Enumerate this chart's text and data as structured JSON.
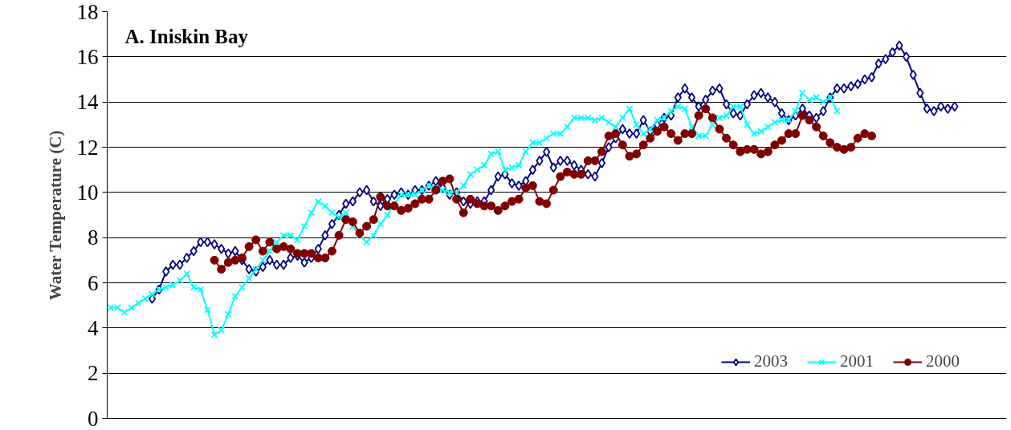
{
  "chart_data": {
    "type": "line",
    "title": "A. Iniskin Bay",
    "ylabel": "Water Temperature (C)",
    "categories": [
      null,
      null,
      null,
      null,
      null,
      null,
      null,
      null,
      null,
      null,
      null,
      null,
      null,
      null,
      null,
      null,
      null,
      null,
      null,
      null,
      null,
      null,
      null,
      null,
      null,
      null,
      null,
      null,
      null,
      null,
      null,
      null,
      null,
      null,
      null,
      null,
      null,
      null,
      null,
      null,
      null,
      null,
      null,
      null,
      null,
      null,
      null,
      null,
      null,
      null,
      null,
      null,
      null,
      null,
      null,
      null,
      null,
      null,
      null,
      null,
      null,
      null,
      null,
      null,
      null,
      null,
      null,
      null,
      null,
      null,
      null,
      null,
      null,
      null,
      null,
      null,
      null,
      null,
      null,
      null,
      null,
      null,
      null,
      null,
      null,
      null,
      null,
      null,
      null,
      null,
      null,
      null,
      null,
      null,
      null,
      null,
      null,
      null,
      null,
      null,
      null,
      null,
      null,
      null,
      null,
      null,
      null,
      null,
      null,
      null,
      null,
      null,
      null,
      null,
      null,
      null,
      null,
      null,
      null,
      null,
      null,
      null,
      null,
      null,
      null,
      null,
      null,
      null,
      null,
      null
    ],
    "series": [
      {
        "name": "2003",
        "color": "#000080",
        "marker": "diamond",
        "values": [
          null,
          null,
          null,
          null,
          null,
          null,
          5.3,
          5.7,
          6.5,
          6.8,
          6.8,
          7.1,
          7.4,
          7.8,
          7.8,
          7.7,
          7.5,
          7.3,
          7.4,
          7.0,
          6.6,
          6.5,
          6.7,
          7.0,
          6.8,
          6.8,
          7.1,
          7.2,
          6.9,
          7.1,
          7.5,
          8.1,
          8.6,
          9.0,
          9.5,
          9.6,
          10.0,
          10.1,
          9.6,
          9.4,
          9.7,
          9.9,
          10.0,
          9.9,
          10.1,
          10.1,
          10.3,
          10.5,
          10.2,
          9.9,
          10.0,
          9.6,
          9.5,
          9.6,
          9.6,
          10.1,
          10.7,
          10.8,
          10.4,
          10.3,
          10.5,
          11.0,
          11.4,
          11.8,
          11.1,
          11.4,
          11.4,
          11.2,
          11.0,
          10.8,
          10.7,
          11.3,
          12.0,
          12.4,
          12.8,
          12.6,
          12.6,
          13.2,
          12.7,
          13.0,
          13.3,
          13.4,
          14.2,
          14.6,
          14.2,
          13.8,
          14.1,
          14.5,
          14.6,
          13.9,
          13.5,
          13.4,
          13.9,
          14.3,
          14.4,
          14.2,
          14.0,
          13.5,
          13.2,
          13.4,
          13.7,
          13.4,
          13.3,
          13.6,
          14.2,
          14.6,
          14.6,
          14.7,
          14.8,
          15.0,
          15.1,
          15.7,
          15.9,
          16.2,
          16.5,
          16.0,
          15.2,
          14.4,
          13.7,
          13.6,
          13.8,
          13.7,
          13.8,
          null,
          null,
          null,
          null,
          null,
          null,
          null
        ]
      },
      {
        "name": "2001",
        "color": "#00ffff",
        "marker": "cross",
        "values": [
          4.9,
          4.9,
          4.7,
          4.9,
          5.1,
          5.3,
          5.5,
          5.7,
          5.8,
          5.9,
          6.1,
          6.4,
          5.8,
          5.7,
          4.8,
          3.7,
          3.9,
          4.6,
          5.4,
          5.8,
          6.2,
          6.6,
          7.0,
          7.4,
          7.8,
          8.1,
          8.1,
          7.9,
          8.5,
          9.1,
          9.6,
          9.4,
          9.1,
          8.9,
          9.1,
          8.5,
          8.1,
          7.8,
          8.1,
          8.6,
          9.0,
          9.5,
          9.9,
          9.9,
          9.9,
          10.1,
          10.3,
          10.2,
          10.1,
          10.0,
          10.0,
          10.3,
          10.8,
          11.0,
          11.2,
          11.7,
          11.8,
          11.0,
          11.1,
          11.2,
          11.8,
          12.2,
          12.2,
          12.4,
          12.6,
          12.6,
          12.9,
          13.3,
          13.3,
          13.3,
          13.2,
          13.3,
          13.1,
          12.9,
          13.3,
          13.7,
          13.0,
          12.6,
          12.8,
          13.2,
          13.3,
          13.6,
          13.8,
          13.7,
          12.9,
          12.5,
          12.5,
          13.0,
          13.3,
          13.4,
          13.8,
          13.8,
          13.0,
          12.6,
          12.7,
          12.9,
          13.1,
          13.2,
          13.2,
          13.6,
          14.4,
          14.1,
          14.2,
          14.0,
          14.2,
          13.6,
          null,
          null,
          null,
          null,
          null,
          null,
          null,
          null,
          null,
          null,
          null,
          null,
          null,
          null,
          null,
          null,
          null,
          null,
          null,
          null,
          null,
          null,
          null,
          null
        ]
      },
      {
        "name": "2000",
        "color": "#800000",
        "marker": "circle",
        "values": [
          null,
          null,
          null,
          null,
          null,
          null,
          null,
          null,
          null,
          null,
          null,
          null,
          null,
          null,
          null,
          7.0,
          6.6,
          6.9,
          7.0,
          7.1,
          7.6,
          7.9,
          7.4,
          7.8,
          7.5,
          7.6,
          7.5,
          7.3,
          7.3,
          7.3,
          7.1,
          7.1,
          7.4,
          8.1,
          8.8,
          8.7,
          8.2,
          8.5,
          8.8,
          9.8,
          9.4,
          9.4,
          9.2,
          9.3,
          9.5,
          9.7,
          9.7,
          10.1,
          10.5,
          10.6,
          9.7,
          9.1,
          9.7,
          9.5,
          9.4,
          9.4,
          9.2,
          9.4,
          9.6,
          9.7,
          10.2,
          10.3,
          9.6,
          9.5,
          10.1,
          10.7,
          10.9,
          10.8,
          10.8,
          11.4,
          11.4,
          11.8,
          12.5,
          12.6,
          12.1,
          11.6,
          11.7,
          12.1,
          12.4,
          12.7,
          12.9,
          12.6,
          12.3,
          12.6,
          12.6,
          13.4,
          13.7,
          13.3,
          12.8,
          12.4,
          12.1,
          11.8,
          11.9,
          11.9,
          11.7,
          11.8,
          12.1,
          12.3,
          12.6,
          12.6,
          13.4,
          13.2,
          12.9,
          12.5,
          12.2,
          12.0,
          11.9,
          12.0,
          12.4,
          12.6,
          12.5,
          null,
          null,
          null,
          null,
          null,
          null,
          null,
          null,
          null,
          null,
          null,
          null,
          null,
          null,
          null,
          null,
          null,
          null,
          null
        ]
      }
    ],
    "ylim": [
      0,
      18
    ],
    "yticks": [
      0,
      2,
      4,
      6,
      8,
      10,
      12,
      14,
      16,
      18
    ],
    "grid": "y",
    "legend": "bottom right"
  }
}
